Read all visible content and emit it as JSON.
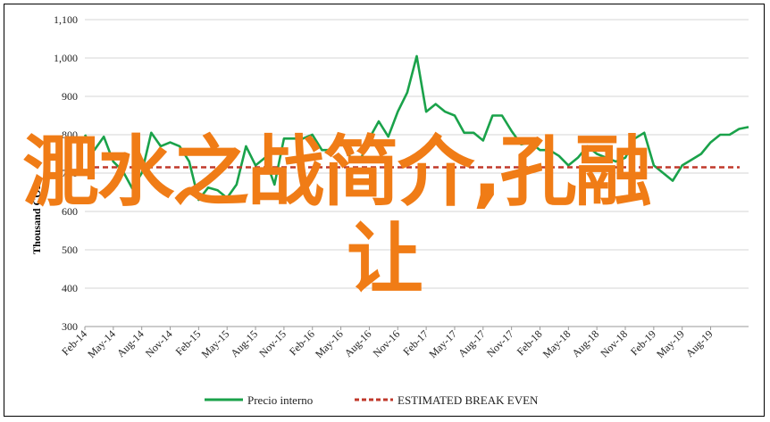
{
  "chart_data": {
    "type": "line",
    "ylabel": "Thousand COP",
    "ylim": [
      300,
      1100
    ],
    "yticks": [
      "300",
      "400",
      "500",
      "600",
      "700",
      "800",
      "900",
      "1,000",
      "1,100"
    ],
    "x_tick_labels": [
      "Feb-14",
      "May-14",
      "Aug-14",
      "Nov-14",
      "Feb-15",
      "May-15",
      "Aug-15",
      "Nov-15",
      "Feb-16",
      "May-16",
      "Aug-16",
      "Nov-16",
      "Feb-17",
      "May-17",
      "Aug-17",
      "Nov-17",
      "Feb-18",
      "May-18",
      "Aug-18",
      "Nov-18",
      "Feb-19",
      "May-19",
      "Aug-19"
    ],
    "legend_position": "bottom",
    "grid": "horizontal",
    "series": [
      {
        "name": "Precio interno",
        "color": "#1aa24a",
        "style": "solid",
        "values": [
          800,
          760,
          795,
          730,
          705,
          660,
          700,
          805,
          770,
          780,
          770,
          730,
          630,
          662,
          655,
          635,
          670,
          770,
          720,
          740,
          670,
          790,
          790,
          790,
          800,
          760,
          760,
          795,
          740,
          730,
          790,
          835,
          795,
          860,
          910,
          1005,
          860,
          880,
          860,
          850,
          805,
          805,
          785,
          850,
          850,
          810,
          775,
          780,
          760,
          760,
          745,
          720,
          740,
          770,
          750,
          740,
          730,
          740,
          790,
          805,
          720,
          700,
          680,
          720,
          735,
          750,
          780,
          800,
          800,
          815,
          820
        ]
      },
      {
        "name": "ESTIMATED BREAK EVEN",
        "color": "#c0392b",
        "style": "dashed",
        "values": [
          715,
          715
        ]
      }
    ]
  },
  "overlay": {
    "line1": "淝水之战简介,孔融",
    "line2": "让"
  },
  "legend": {
    "series1": "Precio interno",
    "series2": "ESTIMATED BREAK EVEN"
  }
}
